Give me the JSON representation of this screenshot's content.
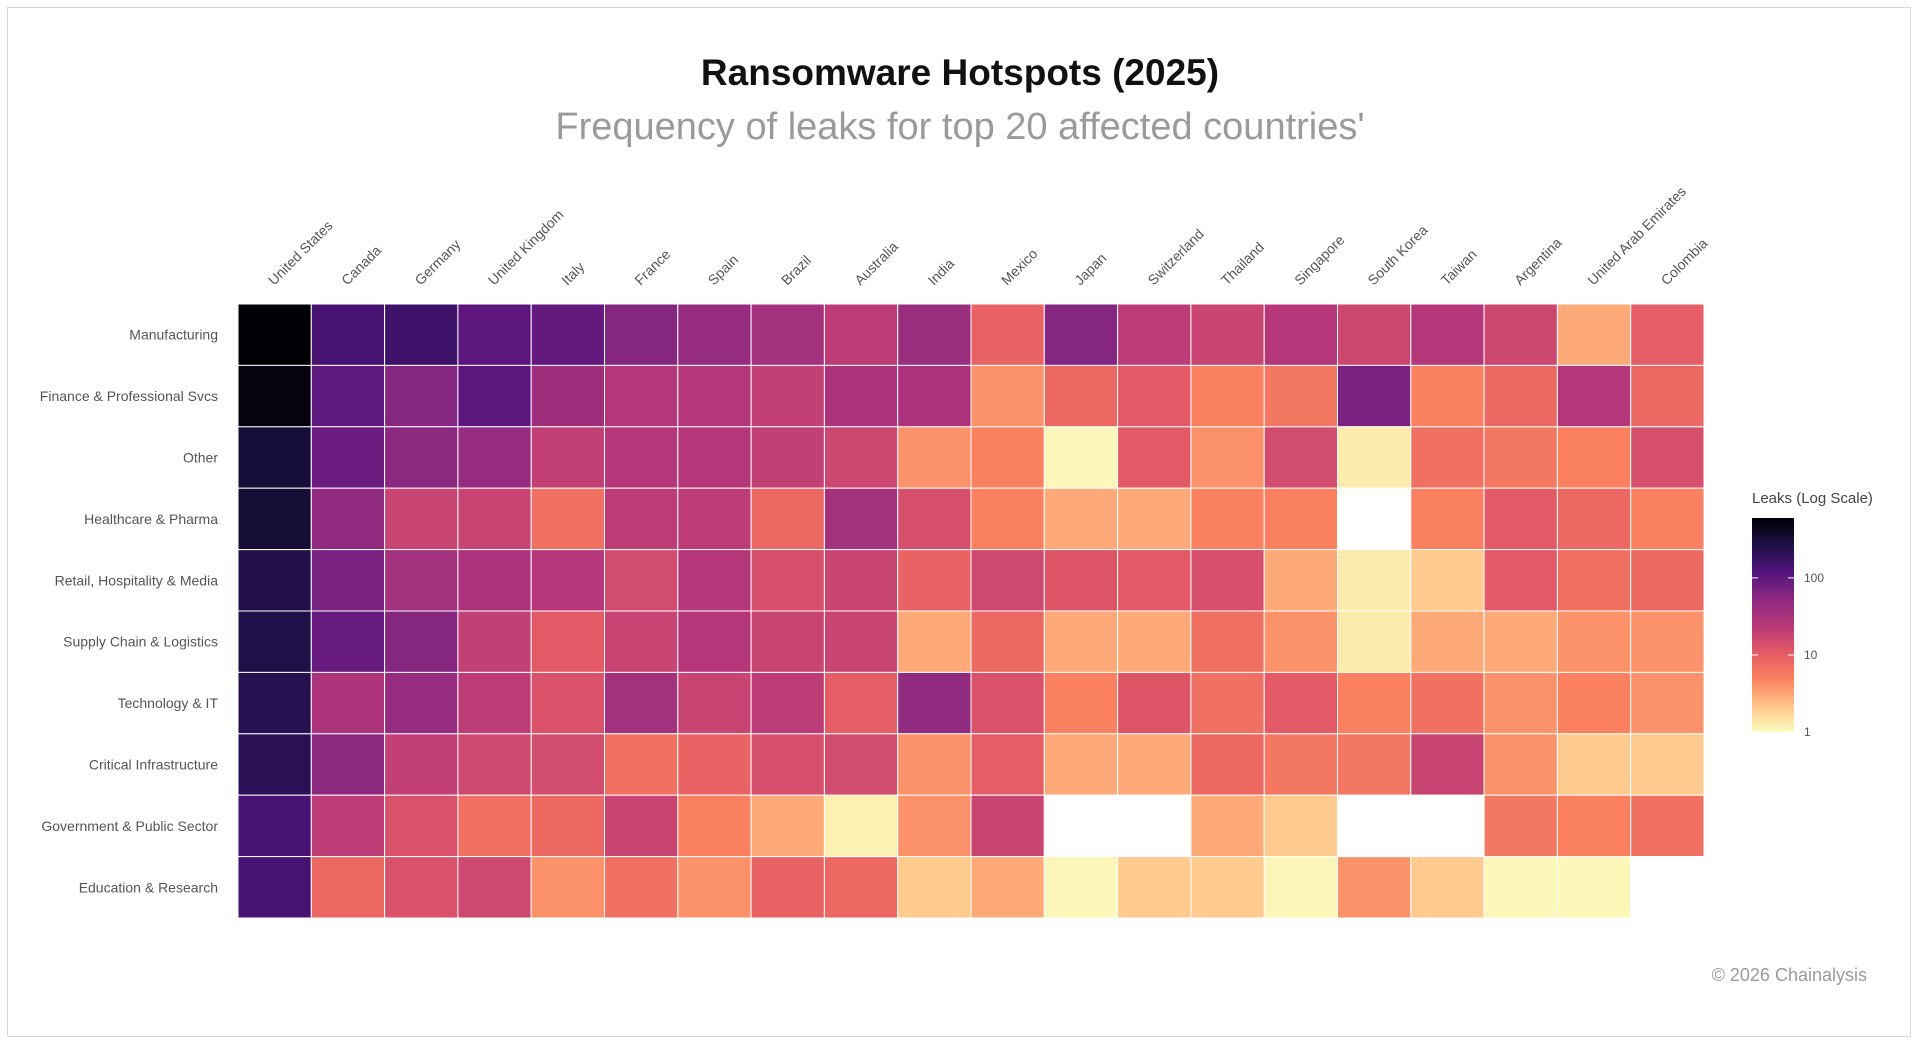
{
  "header": {
    "title": "Ransomware Hotspots (2025)",
    "subtitle": "Frequency of leaks for top 20 affected countries'"
  },
  "footer": {
    "copyright": "© 2026 Chainalysis"
  },
  "chart_data": {
    "type": "heatmap",
    "color_scale": "log",
    "color_range": [
      1,
      600
    ],
    "colors": [
      "#fcfdbf",
      "#fec287",
      "#fa815f",
      "#e35966",
      "#b73779",
      "#8c2981",
      "#51127c",
      "#1d1147",
      "#000004"
    ],
    "missing_color": "#ffffff",
    "legend": {
      "title": "Leaks (Log Scale)",
      "position": "right",
      "ticks": [
        1,
        10,
        100
      ],
      "tick_labels": [
        "1",
        "10",
        "100"
      ]
    },
    "x": [
      "United States",
      "Canada",
      "Germany",
      "United Kingdom",
      "Italy",
      "France",
      "Spain",
      "Brazil",
      "Australia",
      "India",
      "Mexico",
      "Japan",
      "Switzerland",
      "Thailand",
      "Singapore",
      "South Korea",
      "Taiwan",
      "Argentina",
      "United Arab Emirates",
      "Colombia"
    ],
    "y": [
      "Manufacturing",
      "Finance & Professional Svcs",
      "Other",
      "Healthcare & Pharma",
      "Retail, Hospitality & Media",
      "Supply Chain & Logistics",
      "Technology & IT",
      "Critical Infrastructure",
      "Government & Public Sector",
      "Education & Research"
    ],
    "values": [
      [
        590,
        140,
        160,
        105,
        95,
        60,
        45,
        35,
        22,
        42,
        9,
        60,
        22,
        18,
        25,
        17,
        25,
        17,
        3,
        10
      ],
      [
        520,
        100,
        60,
        105,
        38,
        25,
        25,
        20,
        30,
        30,
        4,
        8,
        11,
        5,
        6,
        70,
        5,
        8,
        25,
        8
      ],
      [
        320,
        85,
        55,
        45,
        20,
        25,
        25,
        20,
        17,
        4,
        5,
        1.1,
        11,
        4,
        15,
        1.3,
        7,
        6,
        5,
        14
      ],
      [
        330,
        50,
        18,
        18,
        7,
        22,
        22,
        8,
        35,
        14,
        5,
        3,
        3,
        5,
        5,
        null,
        5,
        11,
        8,
        5
      ],
      [
        250,
        70,
        35,
        30,
        25,
        15,
        25,
        14,
        18,
        9,
        16,
        12,
        11,
        14,
        3,
        1.3,
        2,
        11,
        7,
        8
      ],
      [
        270,
        90,
        60,
        20,
        11,
        18,
        25,
        18,
        18,
        3,
        8,
        3,
        3,
        7,
        4,
        1.3,
        3,
        3,
        4,
        4
      ],
      [
        240,
        30,
        45,
        22,
        13,
        35,
        18,
        22,
        10,
        50,
        13,
        5,
        12,
        7,
        11,
        5,
        7,
        4,
        5,
        4
      ],
      [
        220,
        55,
        20,
        16,
        15,
        7,
        9,
        14,
        15,
        4,
        10,
        3,
        3,
        8,
        6,
        6,
        18,
        4,
        2,
        2
      ],
      [
        140,
        22,
        13,
        7,
        8,
        18,
        5,
        3,
        1.2,
        4,
        18,
        null,
        null,
        3,
        2,
        null,
        null,
        6,
        5,
        7
      ],
      [
        140,
        8,
        13,
        16,
        4,
        7,
        4,
        9,
        8,
        2,
        3,
        1.1,
        2,
        2,
        1.1,
        4,
        2,
        1.1,
        1.1,
        null
      ]
    ]
  }
}
